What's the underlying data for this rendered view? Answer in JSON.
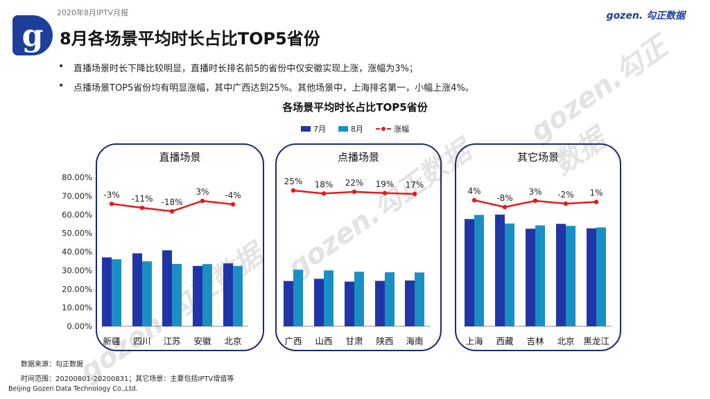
{
  "header": {
    "report_tag": "2020年8月IPTV月报",
    "logo_letter": "g",
    "page_title": "8月各场景平均时长占比TOP5省份",
    "brand": "gozen. 勾正数据"
  },
  "bullets": [
    "直播场景时长下降比较明显，直播时长排名前5的省份中仅安徽实现上涨，涨幅为3%；",
    "点播场景TOP5省份均有明显涨幅，其中广西达到25%。其他场景中，上海排名第一，小幅上涨4%。"
  ],
  "watermark_text": "gozen.勾正数据",
  "chart_data": {
    "type": "bar",
    "title": "各场景平均时长占比TOP5省份",
    "legend": [
      "7月",
      "8月",
      "涨幅"
    ],
    "y_ticks": [
      "80.00%",
      "70.00%",
      "60.00%",
      "50.00%",
      "40.00%",
      "30.00%",
      "20.00%",
      "10.00%",
      "0.00%"
    ],
    "ylim": [
      0,
      80
    ],
    "colors": {
      "jul": "#1f35a8",
      "aug": "#1a8fc4",
      "growth": "#e8181a",
      "panel_border": "#1b2a6b"
    },
    "panels": [
      {
        "name": "直播场景",
        "categories": [
          "新疆",
          "四川",
          "江苏",
          "安徽",
          "北京"
        ],
        "jul": [
          37.0,
          39.2,
          40.8,
          32.4,
          33.8
        ],
        "aug": [
          36.0,
          34.9,
          33.5,
          33.4,
          32.4
        ],
        "growth_labels": [
          "-3%",
          "-11%",
          "-18%",
          "3%",
          "-4%"
        ],
        "growth_values": [
          -3,
          -11,
          -18,
          3,
          -4
        ]
      },
      {
        "name": "点播场景",
        "categories": [
          "广西",
          "山西",
          "甘肃",
          "陕西",
          "海南"
        ],
        "jul": [
          24.3,
          25.5,
          24.0,
          24.4,
          24.6
        ],
        "aug": [
          30.4,
          30.0,
          29.3,
          29.0,
          28.9
        ],
        "growth_labels": [
          "25%",
          "18%",
          "22%",
          "19%",
          "17%"
        ],
        "growth_values": [
          25,
          18,
          22,
          19,
          17
        ]
      },
      {
        "name": "其它场景",
        "categories": [
          "上海",
          "西藏",
          "吉林",
          "北京",
          "黑龙江"
        ],
        "jul": [
          57.6,
          60.0,
          52.4,
          55.0,
          52.6
        ],
        "aug": [
          59.8,
          55.2,
          54.2,
          53.9,
          53.1
        ],
        "growth_labels": [
          "4%",
          "-8%",
          "3%",
          "-2%",
          "1%"
        ],
        "growth_values": [
          4,
          -8,
          3,
          -2,
          1
        ]
      }
    ]
  },
  "footer": {
    "source": "数据来源：勾正数据",
    "period": "时间范围：20200801-20200831；其它场景：主要包括IPTV增值等",
    "company": "Beijing Gozen Data Technology Co.,Ltd."
  }
}
